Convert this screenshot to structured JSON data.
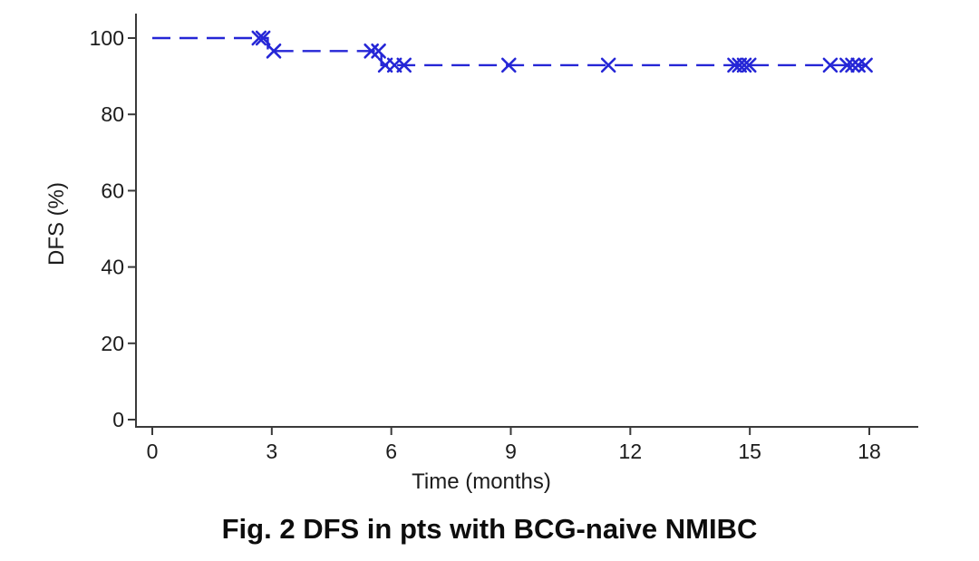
{
  "figure": {
    "caption": "Fig. 2 DFS in pts with BCG-naive NMIBC"
  },
  "colors": {
    "line": "#2526d6",
    "axis": "#3a3a3a",
    "text": "#1c1c1c",
    "background": "#ffffff"
  },
  "chart_data": {
    "type": "line",
    "subtype": "kaplan-meier-step",
    "title": "Fig. 2 DFS in pts with BCG-naive NMIBC",
    "xlabel": "Time (months)",
    "ylabel": "DFS (%)",
    "xlim": [
      0,
      19.3
    ],
    "ylim": [
      0,
      105
    ],
    "x_ticks": [
      0,
      3,
      6,
      9,
      12,
      15,
      18
    ],
    "y_ticks": [
      0,
      20,
      40,
      60,
      80,
      100
    ],
    "grid": false,
    "legend": false,
    "line_style": "dashed",
    "series": [
      {
        "name": "DFS",
        "color": "#2526d6",
        "steps": [
          {
            "from": 0,
            "to": 2.9,
            "dfs": 100
          },
          {
            "from": 2.9,
            "to": 5.75,
            "dfs": 96.6
          },
          {
            "from": 5.75,
            "to": 17.95,
            "dfs": 92.9
          }
        ],
        "censor_marks": [
          {
            "t": 2.68,
            "dfs": 100
          },
          {
            "t": 2.78,
            "dfs": 100
          },
          {
            "t": 3.05,
            "dfs": 96.6
          },
          {
            "t": 5.5,
            "dfs": 96.6
          },
          {
            "t": 5.68,
            "dfs": 96.6
          },
          {
            "t": 5.85,
            "dfs": 92.9
          },
          {
            "t": 6.08,
            "dfs": 92.9
          },
          {
            "t": 6.32,
            "dfs": 92.9
          },
          {
            "t": 8.95,
            "dfs": 92.9
          },
          {
            "t": 11.45,
            "dfs": 92.9
          },
          {
            "t": 14.62,
            "dfs": 92.9
          },
          {
            "t": 14.74,
            "dfs": 92.9
          },
          {
            "t": 14.86,
            "dfs": 92.9
          },
          {
            "t": 14.98,
            "dfs": 92.9
          },
          {
            "t": 17.02,
            "dfs": 92.9
          },
          {
            "t": 17.44,
            "dfs": 92.9
          },
          {
            "t": 17.58,
            "dfs": 92.9
          },
          {
            "t": 17.72,
            "dfs": 92.9
          },
          {
            "t": 17.9,
            "dfs": 92.9
          }
        ]
      }
    ]
  }
}
